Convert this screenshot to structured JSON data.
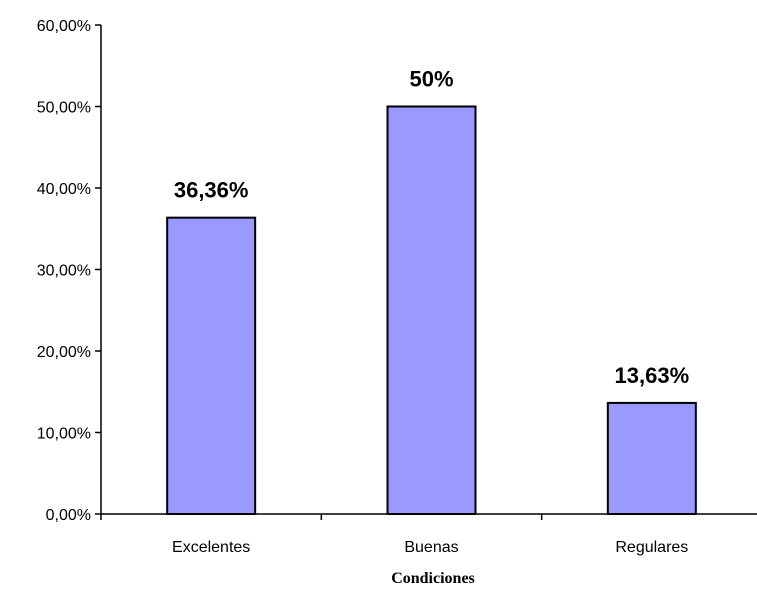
{
  "chart_data": {
    "type": "bar",
    "title": "",
    "xlabel": "Condiciones",
    "ylabel": "",
    "categories": [
      "Excelentes",
      "Buenas",
      "Regulares"
    ],
    "values": [
      36.36,
      50,
      13.63
    ],
    "data_labels": [
      "36,36%",
      "50%",
      "13,63%"
    ],
    "ylim": [
      0,
      60
    ],
    "y_ticks": [
      0,
      10,
      20,
      30,
      40,
      50,
      60
    ],
    "y_tick_labels": [
      "0,00%",
      "10,00%",
      "20,00%",
      "30,00%",
      "40,00%",
      "50,00%",
      "60,00%"
    ],
    "grid": false,
    "legend": "none",
    "bar_color": "#9999ff",
    "bar_edge_color": "#000000"
  }
}
